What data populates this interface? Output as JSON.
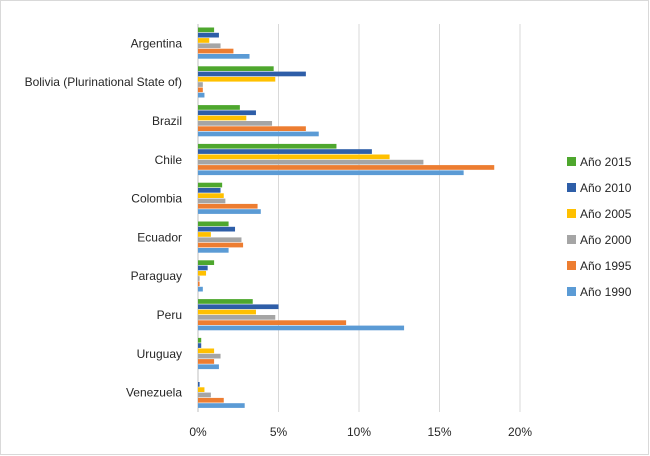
{
  "chart_data": {
    "type": "bar",
    "orientation": "horizontal",
    "title": "",
    "xlabel": "",
    "ylabel": "",
    "categories": [
      "Argentina",
      "Bolivia (Plurinational State of)",
      "Brazil",
      "Chile",
      "Colombia",
      "Ecuador",
      "Paraguay",
      "Peru",
      "Uruguay",
      "Venezuela"
    ],
    "series": [
      {
        "name": "Año 2015",
        "color": "#4ea72e",
        "values": [
          1.0,
          4.7,
          2.6,
          8.6,
          1.5,
          1.9,
          1.0,
          3.4,
          0.2,
          0.0
        ]
      },
      {
        "name": "Año 2010",
        "color": "#2e5ea8",
        "values": [
          1.3,
          6.7,
          3.6,
          10.8,
          1.4,
          2.3,
          0.6,
          5.0,
          0.2,
          0.1
        ]
      },
      {
        "name": "Año 2005",
        "color": "#ffc000",
        "values": [
          0.7,
          4.8,
          3.0,
          11.9,
          1.6,
          0.8,
          0.5,
          3.6,
          1.0,
          0.4
        ]
      },
      {
        "name": "Año 2000",
        "color": "#a5a5a5",
        "values": [
          1.4,
          0.3,
          4.6,
          14.0,
          1.7,
          2.7,
          0.1,
          4.8,
          1.4,
          0.8
        ]
      },
      {
        "name": "Año 1995",
        "color": "#ed7d31",
        "values": [
          2.2,
          0.3,
          6.7,
          18.4,
          3.7,
          2.8,
          0.1,
          9.2,
          1.0,
          1.6
        ]
      },
      {
        "name": "Año 1990",
        "color": "#5b9bd5",
        "values": [
          3.2,
          0.4,
          7.5,
          16.5,
          3.9,
          1.9,
          0.3,
          12.8,
          1.3,
          2.9
        ]
      }
    ],
    "xlim": [
      0,
      20
    ],
    "xticks": [
      0,
      5,
      10,
      15,
      20
    ],
    "xtick_labels": [
      "0%",
      "5%",
      "10%",
      "15%",
      "20%"
    ],
    "grid": true,
    "legend_position": "right"
  }
}
